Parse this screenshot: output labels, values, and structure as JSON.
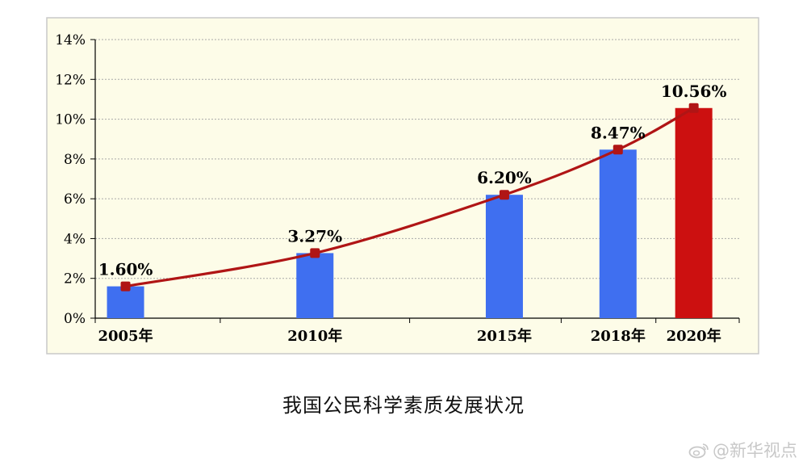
{
  "chart_data": {
    "type": "bar+line",
    "categories": [
      "2005年",
      "2010年",
      "2015年",
      "2018年",
      "2020年"
    ],
    "x": [
      2005,
      2010,
      2015,
      2018,
      2020
    ],
    "values": [
      1.6,
      3.27,
      6.2,
      8.47,
      10.56
    ],
    "data_labels": [
      "1.60%",
      "3.27%",
      "6.20%",
      "8.47%",
      "10.56%"
    ],
    "ylim": [
      0,
      14
    ],
    "yticks": [
      0,
      2,
      4,
      6,
      8,
      10,
      12,
      14
    ],
    "ytick_labels": [
      "0%",
      "2%",
      "4%",
      "6%",
      "8%",
      "10%",
      "12%",
      "14%"
    ],
    "grid": true,
    "bar_colors": [
      "#3f6ff0",
      "#3f6ff0",
      "#3f6ff0",
      "#3f6ff0",
      "#cc1010"
    ],
    "line_color": "#b01515",
    "plot_background": "#fdfce8",
    "caption": "我国公民科学素质发展状况"
  },
  "watermark": {
    "text": "@新华视点",
    "icon": "weibo-icon"
  }
}
